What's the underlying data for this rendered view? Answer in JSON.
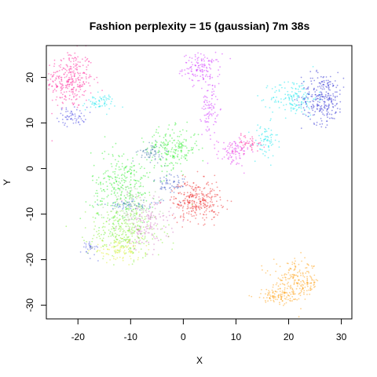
{
  "chart_data": {
    "type": "scatter",
    "title": "Fashion perplexity = 15 (gaussian) 7m 38s",
    "xlabel": "X",
    "ylabel": "Y",
    "xlim": [
      -26,
      32
    ],
    "ylim": [
      -33,
      27
    ],
    "xticks": [
      -20,
      -10,
      0,
      10,
      20,
      30
    ],
    "xtick_labels": [
      "-20",
      "-10",
      "0",
      "10",
      "20",
      "30"
    ],
    "yticks": [
      -30,
      -20,
      -10,
      0,
      10,
      20
    ],
    "ytick_labels": [
      "-30",
      "-20",
      "-10",
      "0",
      "10",
      "20"
    ],
    "grid": false,
    "legend": "none",
    "clusters": [
      {
        "color": "#ff1493",
        "cx": -21.5,
        "cy": 19.5,
        "sx": 2.2,
        "sy": 3.2,
        "n": 300
      },
      {
        "color": "#3030e0",
        "cx": -21.0,
        "cy": 11.5,
        "sx": 1.4,
        "sy": 1.0,
        "n": 60
      },
      {
        "color": "#00e5ee",
        "cx": -16.0,
        "cy": 14.5,
        "sx": 1.6,
        "sy": 0.9,
        "n": 60
      },
      {
        "color": "#cc22ff",
        "cx": 3.5,
        "cy": 22.0,
        "sx": 1.8,
        "sy": 1.6,
        "n": 130
      },
      {
        "color": "#cc22ff",
        "cx": 5.0,
        "cy": 13.5,
        "sx": 0.7,
        "sy": 3.2,
        "n": 90
      },
      {
        "color": "#dd22ee",
        "cx": 9.5,
        "cy": 3.5,
        "sx": 1.5,
        "sy": 1.5,
        "n": 90
      },
      {
        "color": "#ff1493",
        "cx": 12.5,
        "cy": 5.5,
        "sx": 1.5,
        "sy": 0.9,
        "n": 50
      },
      {
        "color": "#00e5ee",
        "cx": 15.5,
        "cy": 6.0,
        "sx": 1.2,
        "sy": 2.0,
        "n": 70
      },
      {
        "color": "#00e5ee",
        "cx": 21.0,
        "cy": 15.5,
        "sx": 2.2,
        "sy": 2.0,
        "n": 150
      },
      {
        "color": "#2020d0",
        "cx": 26.5,
        "cy": 15.5,
        "sx": 2.0,
        "sy": 2.8,
        "n": 260
      },
      {
        "color": "#22ee22",
        "cx": -2.0,
        "cy": 4.5,
        "sx": 2.5,
        "sy": 2.2,
        "n": 200
      },
      {
        "color": "#3070a0",
        "cx": -6.0,
        "cy": 3.5,
        "sx": 1.2,
        "sy": 1.0,
        "n": 60
      },
      {
        "color": "#ee2222",
        "cx": 2.5,
        "cy": -7.0,
        "sx": 2.3,
        "sy": 2.2,
        "n": 300
      },
      {
        "color": "#3050c0",
        "cx": -2.5,
        "cy": -3.5,
        "sx": 1.5,
        "sy": 1.5,
        "n": 60
      },
      {
        "color": "#22ee22",
        "cx": -11.5,
        "cy": -4.0,
        "sx": 3.0,
        "sy": 4.0,
        "n": 300
      },
      {
        "color": "#77ee22",
        "cx": -11.0,
        "cy": -14.0,
        "sx": 3.5,
        "sy": 2.8,
        "n": 280
      },
      {
        "color": "#cc66bb",
        "cx": -7.0,
        "cy": -12.0,
        "sx": 2.3,
        "sy": 2.8,
        "n": 150
      },
      {
        "color": "#99cc88",
        "cx": -10.0,
        "cy": -8.0,
        "sx": 2.5,
        "sy": 2.5,
        "n": 120
      },
      {
        "color": "#2060d0",
        "cx": -10.0,
        "cy": -8.0,
        "sx": 3.0,
        "sy": 0.5,
        "n": 50
      },
      {
        "color": "#ddee22",
        "cx": -12.5,
        "cy": -18.0,
        "sx": 2.5,
        "sy": 1.0,
        "n": 90
      },
      {
        "color": "#4455dd",
        "cx": -17.5,
        "cy": -17.5,
        "sx": 0.8,
        "sy": 0.8,
        "n": 30
      },
      {
        "color": "#ff9900",
        "cx": 21.5,
        "cy": -25.0,
        "sx": 2.2,
        "sy": 2.2,
        "n": 220
      },
      {
        "color": "#ff9900",
        "cx": 17.5,
        "cy": -28.0,
        "sx": 2.0,
        "sy": 0.7,
        "n": 80
      }
    ]
  }
}
